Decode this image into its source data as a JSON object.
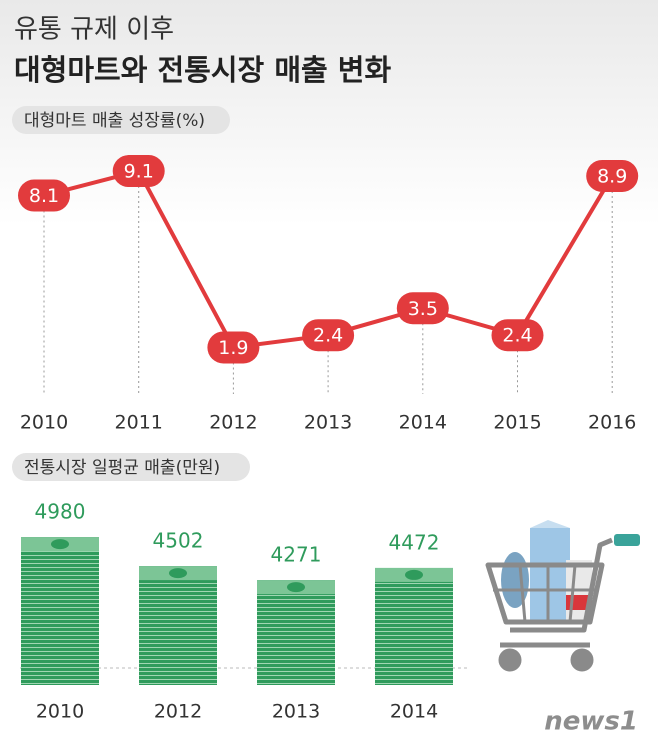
{
  "header": {
    "subtitle": "유통 규제 이후",
    "title": "대형마트와 전통시장 매출 변화"
  },
  "chart_data": [
    {
      "type": "line",
      "title": "대형마트 매출 성장률(%)",
      "categories": [
        "2010",
        "2011",
        "2012",
        "2013",
        "2014",
        "2015",
        "2016"
      ],
      "values": [
        8.1,
        9.1,
        1.9,
        2.4,
        3.5,
        2.4,
        8.9
      ],
      "color": "#e23b3d"
    },
    {
      "type": "bar",
      "title": "전통시장 일평균 매출(만원)",
      "categories": [
        "2010",
        "2012",
        "2013",
        "2014"
      ],
      "values": [
        4980,
        4502,
        4271,
        4472
      ],
      "color": "#2f9b5c"
    }
  ],
  "source": "news1"
}
